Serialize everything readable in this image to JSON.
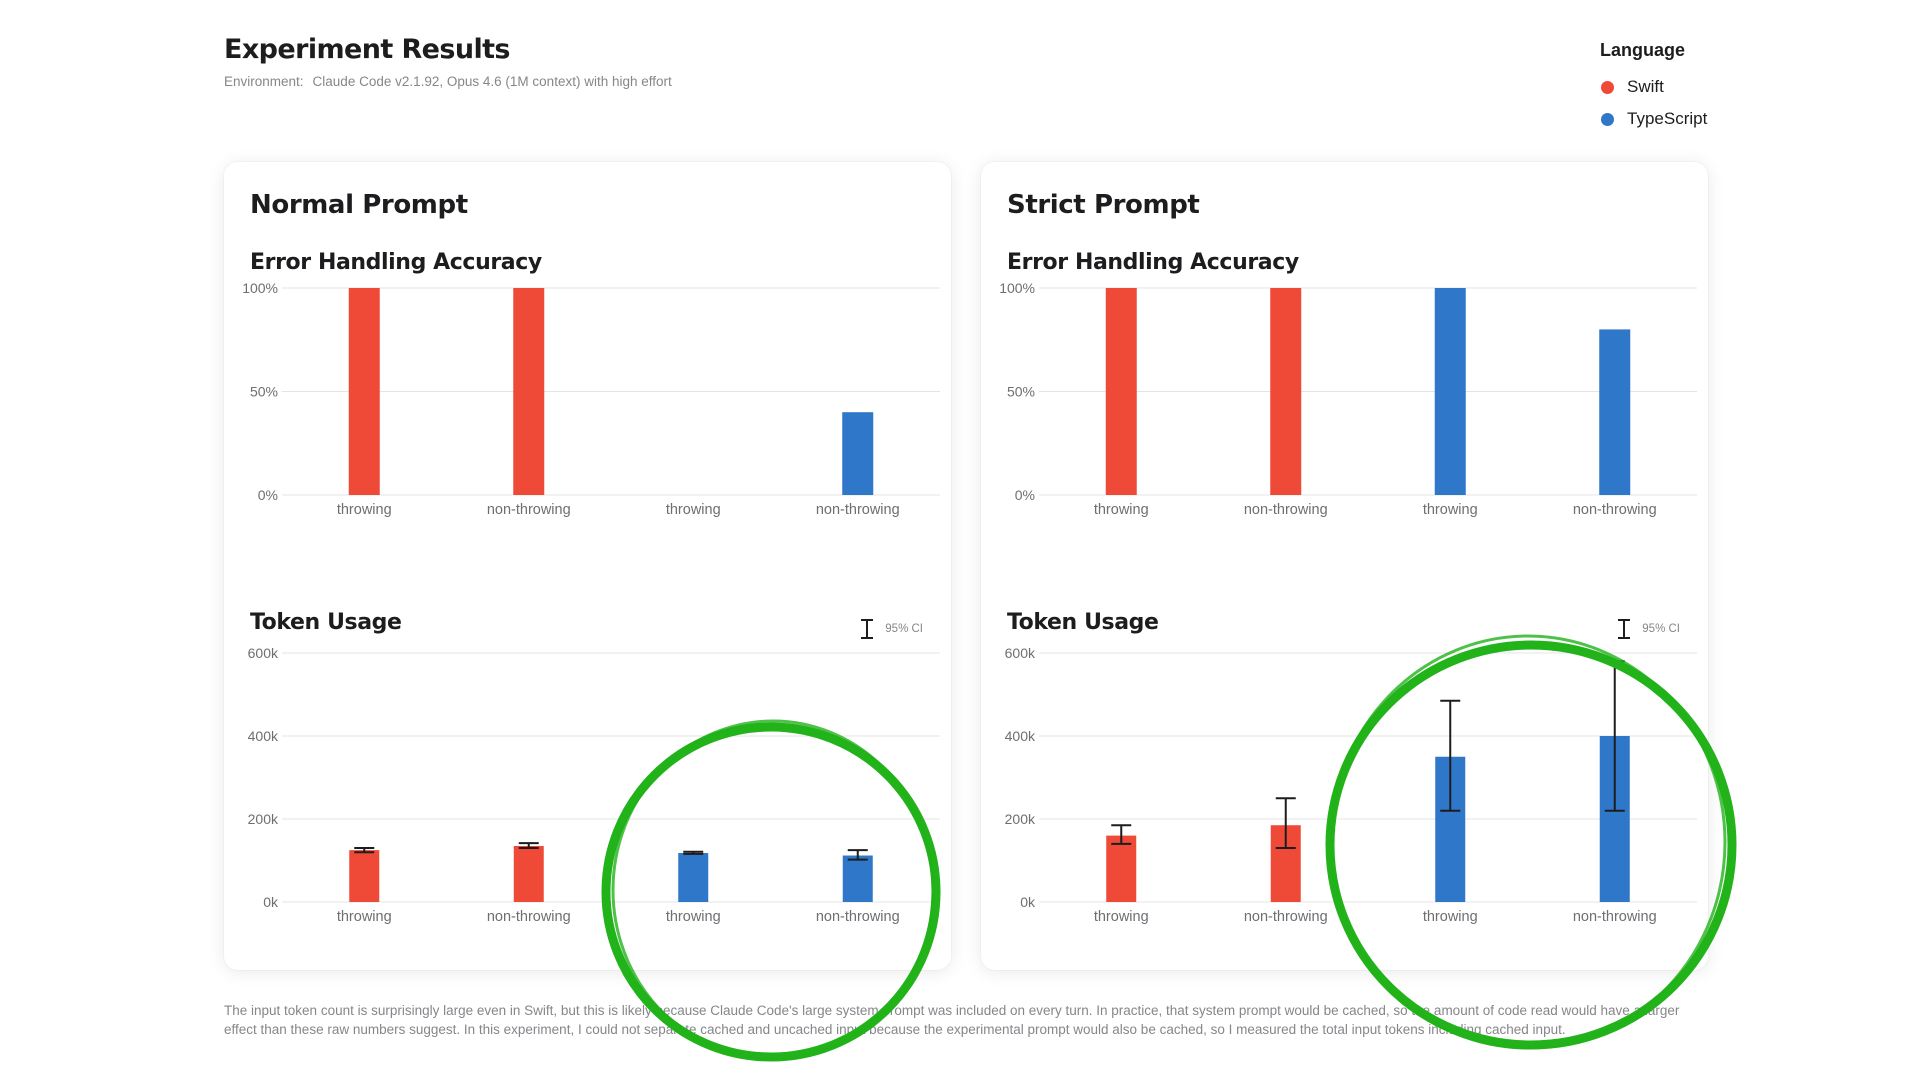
{
  "header": {
    "title": "Experiment Results",
    "environment_label": "Environment:",
    "environment_value": "Claude Code v2.1.92, Opus 4.6 (1M context) with high effort"
  },
  "legend": {
    "title": "Language",
    "items": [
      {
        "label": "Swift",
        "color": "#ef4a37"
      },
      {
        "label": "TypeScript",
        "color": "#2f77c9"
      }
    ]
  },
  "panels": [
    {
      "title": "Normal Prompt",
      "accuracy_title": "Error Handling Accuracy",
      "token_title": "Token Usage",
      "ci_label": "95% CI"
    },
    {
      "title": "Strict Prompt",
      "accuracy_title": "Error Handling Accuracy",
      "token_title": "Token Usage",
      "ci_label": "95% CI"
    }
  ],
  "chart_data": [
    {
      "type": "bar",
      "title": "Error Handling Accuracy",
      "panel": "Normal Prompt",
      "categories": [
        "throwing",
        "non-throwing",
        "throwing",
        "non-throwing"
      ],
      "languages": [
        "Swift",
        "Swift",
        "TypeScript",
        "TypeScript"
      ],
      "values": [
        100,
        100,
        0,
        40
      ],
      "yticks": [
        "0%",
        "50%",
        "100%"
      ],
      "ylim": [
        0,
        100
      ],
      "grid": true
    },
    {
      "type": "bar",
      "title": "Token Usage",
      "panel": "Normal Prompt",
      "categories": [
        "throwing",
        "non-throwing",
        "throwing",
        "non-throwing"
      ],
      "languages": [
        "Swift",
        "Swift",
        "TypeScript",
        "TypeScript"
      ],
      "values": [
        125000,
        135000,
        118000,
        112000
      ],
      "ci_low": [
        120000,
        130000,
        116000,
        102000
      ],
      "ci_high": [
        130000,
        142000,
        121000,
        125000
      ],
      "yticks": [
        "0k",
        "200k",
        "400k",
        "600k"
      ],
      "ylim": [
        0,
        600000
      ],
      "grid": true
    },
    {
      "type": "bar",
      "title": "Error Handling Accuracy",
      "panel": "Strict Prompt",
      "categories": [
        "throwing",
        "non-throwing",
        "throwing",
        "non-throwing"
      ],
      "languages": [
        "Swift",
        "Swift",
        "TypeScript",
        "TypeScript"
      ],
      "values": [
        100,
        100,
        100,
        80
      ],
      "yticks": [
        "0%",
        "50%",
        "100%"
      ],
      "ylim": [
        0,
        100
      ],
      "grid": true
    },
    {
      "type": "bar",
      "title": "Token Usage",
      "panel": "Strict Prompt",
      "categories": [
        "throwing",
        "non-throwing",
        "throwing",
        "non-throwing"
      ],
      "languages": [
        "Swift",
        "Swift",
        "TypeScript",
        "TypeScript"
      ],
      "values": [
        160000,
        185000,
        350000,
        400000
      ],
      "ci_low": [
        140000,
        130000,
        220000,
        220000
      ],
      "ci_high": [
        185000,
        250000,
        485000,
        580000
      ],
      "yticks": [
        "0k",
        "200k",
        "400k",
        "600k"
      ],
      "ylim": [
        0,
        600000
      ],
      "grid": true
    }
  ],
  "footnote": "The input token count is surprisingly large even in Swift, but this is likely because Claude Code's large system prompt was included on every turn. In practice, that system prompt would be cached, so the amount of code read would have a larger effect than these raw numbers suggest. In this experiment, I could not separate cached and uncached input because the experimental prompt would also be cached, so I measured the total input tokens including cached input.",
  "annotation": {
    "color": "#22b21a"
  }
}
